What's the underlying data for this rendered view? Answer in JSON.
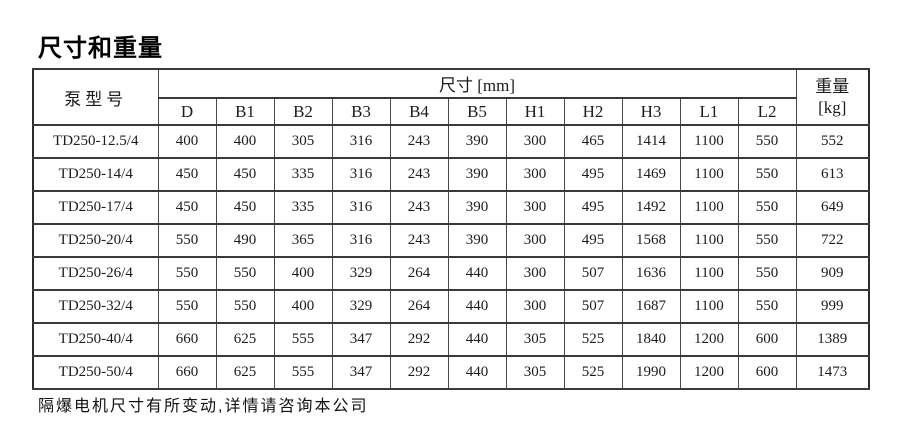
{
  "page": {
    "title": "尺寸和重量",
    "footnote": "隔爆电机尺寸有所变动,详情请咨询本公司"
  },
  "table": {
    "headers": {
      "model": "泵型号",
      "dims_group": "尺寸 [mm]",
      "weight_line1": "重量",
      "weight_line2": "[kg]",
      "dim_columns": [
        "D",
        "B1",
        "B2",
        "B3",
        "B4",
        "B5",
        "H1",
        "H2",
        "H3",
        "L1",
        "L2"
      ]
    },
    "rows": [
      {
        "model": "TD250-12.5/4",
        "dims": [
          "400",
          "400",
          "305",
          "316",
          "243",
          "390",
          "300",
          "465",
          "1414",
          "1100",
          "550"
        ],
        "weight": "552"
      },
      {
        "model": "TD250-14/4",
        "dims": [
          "450",
          "450",
          "335",
          "316",
          "243",
          "390",
          "300",
          "495",
          "1469",
          "1100",
          "550"
        ],
        "weight": "613"
      },
      {
        "model": "TD250-17/4",
        "dims": [
          "450",
          "450",
          "335",
          "316",
          "243",
          "390",
          "300",
          "495",
          "1492",
          "1100",
          "550"
        ],
        "weight": "649"
      },
      {
        "model": "TD250-20/4",
        "dims": [
          "550",
          "490",
          "365",
          "316",
          "243",
          "390",
          "300",
          "495",
          "1568",
          "1100",
          "550"
        ],
        "weight": "722"
      },
      {
        "model": "TD250-26/4",
        "dims": [
          "550",
          "550",
          "400",
          "329",
          "264",
          "440",
          "300",
          "507",
          "1636",
          "1100",
          "550"
        ],
        "weight": "909"
      },
      {
        "model": "TD250-32/4",
        "dims": [
          "550",
          "550",
          "400",
          "329",
          "264",
          "440",
          "300",
          "507",
          "1687",
          "1100",
          "550"
        ],
        "weight": "999"
      },
      {
        "model": "TD250-40/4",
        "dims": [
          "660",
          "625",
          "555",
          "347",
          "292",
          "440",
          "305",
          "525",
          "1840",
          "1200",
          "600"
        ],
        "weight": "1389"
      },
      {
        "model": "TD250-50/4",
        "dims": [
          "660",
          "625",
          "555",
          "347",
          "292",
          "440",
          "305",
          "525",
          "1990",
          "1200",
          "600"
        ],
        "weight": "1473"
      }
    ]
  }
}
